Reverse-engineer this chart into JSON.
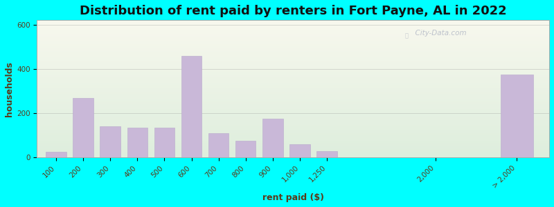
{
  "title": "Distribution of rent paid by renters in Fort Payne, AL in 2022",
  "xlabel": "rent paid ($)",
  "ylabel": "households",
  "bar_color": "#c9b8d8",
  "bar_edge_color": "#b8a8cc",
  "outer_bg": "#00ffff",
  "ylim": [
    0,
    620
  ],
  "yticks": [
    0,
    200,
    400,
    600
  ],
  "categories": [
    "100",
    "200",
    "300",
    "400",
    "500",
    "600",
    "700",
    "800",
    "900",
    "1,000",
    "1,250",
    "2,000",
    "> 2,000"
  ],
  "values": [
    25,
    270,
    140,
    135,
    135,
    460,
    110,
    75,
    175,
    60,
    30,
    0,
    375
  ],
  "title_fontsize": 13,
  "axis_label_fontsize": 9,
  "tick_fontsize": 7.5,
  "watermark_text": "City-Data.com"
}
